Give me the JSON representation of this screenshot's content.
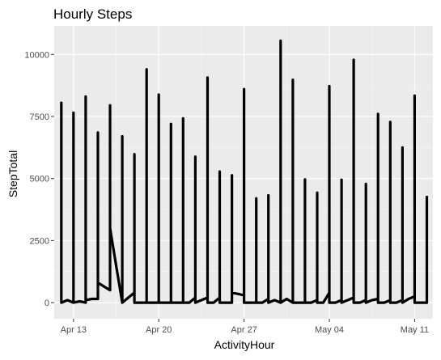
{
  "colors": {
    "panel_background": "#ebebeb",
    "grid_major": "#ffffff",
    "grid_minor": "#f5f5f5",
    "line": "#000000",
    "tick_text": "#4d4d4d",
    "title_text": "#000000"
  },
  "chart_data": {
    "type": "line",
    "title": "Hourly Steps",
    "xlabel": "ActivityHour",
    "ylabel": "StepTotal",
    "x_axis": "date",
    "xlim": [
      "2016-04-11T10:00",
      "2016-05-12T12:00"
    ],
    "ylim": [
      -650,
      11150
    ],
    "x_ticks": [
      {
        "value": "2016-04-13",
        "label": "Apr 13"
      },
      {
        "value": "2016-04-20",
        "label": "Apr 20"
      },
      {
        "value": "2016-04-27",
        "label": "Apr 27"
      },
      {
        "value": "2016-05-04",
        "label": "May 04"
      },
      {
        "value": "2016-05-11",
        "label": "May 11"
      }
    ],
    "y_ticks": [
      0,
      2500,
      5000,
      7500,
      10000
    ],
    "y_tick_labels": [
      "0",
      "2500",
      "5000",
      "7500",
      "10000"
    ],
    "grid": true,
    "legend": "none",
    "series": [
      {
        "points": [
          [
            "2016-04-12T00:00",
            0
          ],
          [
            "2016-04-12T00:00",
            8050
          ],
          [
            "2016-04-12T00:00",
            0
          ],
          [
            "2016-04-12T12:00",
            100
          ],
          [
            "2016-04-13T00:00",
            0
          ],
          [
            "2016-04-13T00:00",
            7650
          ],
          [
            "2016-04-13T00:00",
            0
          ],
          [
            "2016-04-13T12:00",
            50
          ],
          [
            "2016-04-14T00:00",
            0
          ],
          [
            "2016-04-14T00:00",
            8300
          ],
          [
            "2016-04-14T00:00",
            100
          ],
          [
            "2016-04-14T12:00",
            150
          ],
          [
            "2016-04-15T00:00",
            150
          ],
          [
            "2016-04-15T00:00",
            6850
          ],
          [
            "2016-04-15T00:00",
            800
          ],
          [
            "2016-04-15T12:00",
            650
          ],
          [
            "2016-04-16T00:00",
            500
          ],
          [
            "2016-04-16T00:00",
            7950
          ],
          [
            "2016-04-16T00:00",
            3000
          ],
          [
            "2016-04-16T12:00",
            1500
          ],
          [
            "2016-04-17T00:00",
            0
          ],
          [
            "2016-04-17T00:00",
            6700
          ],
          [
            "2016-04-17T00:00",
            0
          ],
          [
            "2016-04-17T12:00",
            200
          ],
          [
            "2016-04-18T00:00",
            400
          ],
          [
            "2016-04-18T00:00",
            5980
          ],
          [
            "2016-04-18T00:00",
            0
          ],
          [
            "2016-04-18T12:00",
            0
          ],
          [
            "2016-04-19T00:00",
            0
          ],
          [
            "2016-04-19T00:00",
            9400
          ],
          [
            "2016-04-19T00:00",
            0
          ],
          [
            "2016-04-19T12:00",
            0
          ],
          [
            "2016-04-20T00:00",
            0
          ],
          [
            "2016-04-20T00:00",
            8380
          ],
          [
            "2016-04-20T00:00",
            0
          ],
          [
            "2016-04-20T12:00",
            0
          ],
          [
            "2016-04-21T00:00",
            0
          ],
          [
            "2016-04-21T00:00",
            7200
          ],
          [
            "2016-04-21T00:00",
            0
          ],
          [
            "2016-04-21T12:00",
            0
          ],
          [
            "2016-04-22T00:00",
            0
          ],
          [
            "2016-04-22T00:00",
            7420
          ],
          [
            "2016-04-22T00:00",
            0
          ],
          [
            "2016-04-22T12:00",
            0
          ],
          [
            "2016-04-23T00:00",
            200
          ],
          [
            "2016-04-23T00:00",
            5880
          ],
          [
            "2016-04-23T00:00",
            0
          ],
          [
            "2016-04-23T12:00",
            100
          ],
          [
            "2016-04-24T00:00",
            200
          ],
          [
            "2016-04-24T00:00",
            9070
          ],
          [
            "2016-04-24T00:00",
            0
          ],
          [
            "2016-04-24T12:00",
            0
          ],
          [
            "2016-04-25T00:00",
            200
          ],
          [
            "2016-04-25T00:00",
            5280
          ],
          [
            "2016-04-25T00:00",
            0
          ],
          [
            "2016-04-25T12:00",
            0
          ],
          [
            "2016-04-26T00:00",
            0
          ],
          [
            "2016-04-26T00:00",
            5130
          ],
          [
            "2016-04-26T00:00",
            400
          ],
          [
            "2016-04-26T12:00",
            350
          ],
          [
            "2016-04-27T00:00",
            300
          ],
          [
            "2016-04-27T00:00",
            8600
          ],
          [
            "2016-04-27T00:00",
            0
          ],
          [
            "2016-04-27T12:00",
            0
          ],
          [
            "2016-04-28T00:00",
            0
          ],
          [
            "2016-04-28T00:00",
            4200
          ],
          [
            "2016-04-28T00:00",
            0
          ],
          [
            "2016-04-28T12:00",
            0
          ],
          [
            "2016-04-29T00:00",
            150
          ],
          [
            "2016-04-29T00:00",
            4320
          ],
          [
            "2016-04-29T00:00",
            0
          ],
          [
            "2016-04-29T12:00",
            100
          ],
          [
            "2016-04-30T00:00",
            0
          ],
          [
            "2016-04-30T00:00",
            10550
          ],
          [
            "2016-04-30T00:00",
            0
          ],
          [
            "2016-04-30T12:00",
            150
          ],
          [
            "2016-05-01T00:00",
            0
          ],
          [
            "2016-05-01T00:00",
            8980
          ],
          [
            "2016-05-01T00:00",
            0
          ],
          [
            "2016-05-01T12:00",
            0
          ],
          [
            "2016-05-02T00:00",
            0
          ],
          [
            "2016-05-02T00:00",
            4960
          ],
          [
            "2016-05-02T00:00",
            0
          ],
          [
            "2016-05-02T12:00",
            0
          ],
          [
            "2016-05-03T00:00",
            100
          ],
          [
            "2016-05-03T00:00",
            4430
          ],
          [
            "2016-05-03T00:00",
            0
          ],
          [
            "2016-05-03T12:00",
            0
          ],
          [
            "2016-05-04T00:00",
            400
          ],
          [
            "2016-05-04T00:00",
            8720
          ],
          [
            "2016-05-04T00:00",
            0
          ],
          [
            "2016-05-04T12:00",
            0
          ],
          [
            "2016-05-05T00:00",
            100
          ],
          [
            "2016-05-05T00:00",
            4950
          ],
          [
            "2016-05-05T00:00",
            0
          ],
          [
            "2016-05-05T12:00",
            100
          ],
          [
            "2016-05-06T00:00",
            200
          ],
          [
            "2016-05-06T00:00",
            9780
          ],
          [
            "2016-05-06T00:00",
            0
          ],
          [
            "2016-05-06T12:00",
            0
          ],
          [
            "2016-05-07T00:00",
            100
          ],
          [
            "2016-05-07T00:00",
            4780
          ],
          [
            "2016-05-07T00:00",
            0
          ],
          [
            "2016-05-07T12:00",
            100
          ],
          [
            "2016-05-08T00:00",
            150
          ],
          [
            "2016-05-08T00:00",
            7600
          ],
          [
            "2016-05-08T00:00",
            0
          ],
          [
            "2016-05-08T12:00",
            0
          ],
          [
            "2016-05-09T00:00",
            100
          ],
          [
            "2016-05-09T00:00",
            7280
          ],
          [
            "2016-05-09T00:00",
            0
          ],
          [
            "2016-05-09T12:00",
            0
          ],
          [
            "2016-05-10T00:00",
            100
          ],
          [
            "2016-05-10T00:00",
            6250
          ],
          [
            "2016-05-10T00:00",
            0
          ],
          [
            "2016-05-10T12:00",
            150
          ],
          [
            "2016-05-11T00:00",
            250
          ],
          [
            "2016-05-11T00:00",
            8340
          ],
          [
            "2016-05-11T00:00",
            0
          ],
          [
            "2016-05-11T12:00",
            0
          ],
          [
            "2016-05-12T00:00",
            0
          ],
          [
            "2016-05-12T00:00",
            4300
          ]
        ]
      }
    ]
  }
}
